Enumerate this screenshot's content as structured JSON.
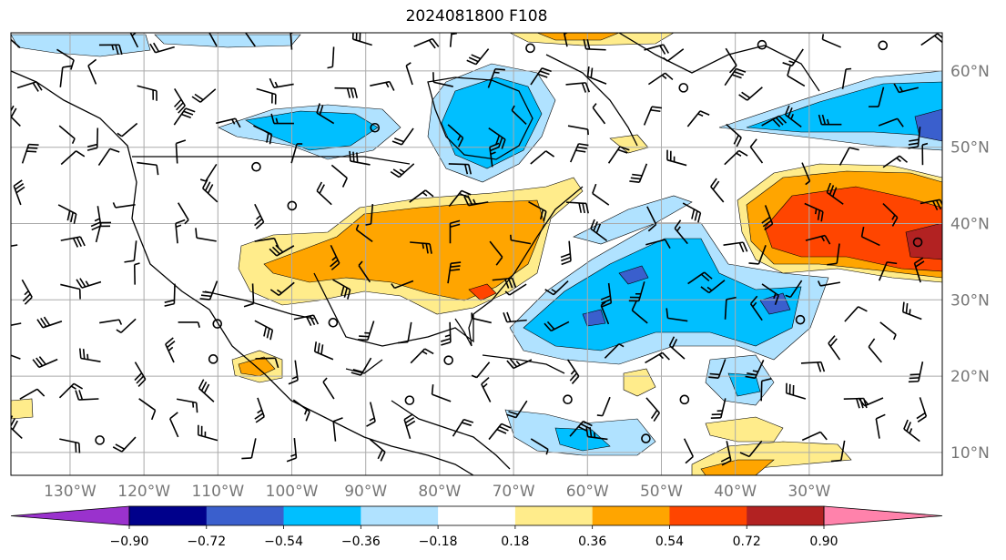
{
  "title": "2024081800 F108",
  "map": {
    "lon_range": [
      -138,
      -12
    ],
    "lat_range": [
      7,
      65
    ],
    "lon_ticks": [
      {
        "value": -130,
        "label": "130°W"
      },
      {
        "value": -120,
        "label": "120°W"
      },
      {
        "value": -110,
        "label": "110°W"
      },
      {
        "value": -100,
        "label": "100°W"
      },
      {
        "value": -90,
        "label": "90°W"
      },
      {
        "value": -80,
        "label": "80°W"
      },
      {
        "value": -70,
        "label": "70°W"
      },
      {
        "value": -60,
        "label": "60°W"
      },
      {
        "value": -50,
        "label": "50°W"
      },
      {
        "value": -40,
        "label": "40°W"
      },
      {
        "value": -30,
        "label": "30°W"
      }
    ],
    "lat_ticks": [
      {
        "value": 60,
        "label": "60°N"
      },
      {
        "value": 50,
        "label": "50°N"
      },
      {
        "value": 40,
        "label": "40°N"
      },
      {
        "value": 30,
        "label": "30°N"
      },
      {
        "value": 20,
        "label": "20°N"
      },
      {
        "value": 10,
        "label": "10°N"
      }
    ]
  },
  "colorbar": {
    "bins": [
      {
        "color": "#9a32cd",
        "extend": "min"
      },
      {
        "color": "#00008b"
      },
      {
        "color": "#3a5fcd"
      },
      {
        "color": "#00bfff"
      },
      {
        "color": "#b0e2ff"
      },
      {
        "color": "#ffffff"
      },
      {
        "color": "#ffec8b"
      },
      {
        "color": "#ffa500"
      },
      {
        "color": "#ff4500"
      },
      {
        "color": "#b22222"
      },
      {
        "color": "#ff82ab",
        "extend": "max"
      }
    ],
    "labels": [
      "−0.90",
      "−0.72",
      "−0.54",
      "−0.36",
      "−0.18",
      "0.18",
      "0.36",
      "0.54",
      "0.72",
      "0.90"
    ]
  },
  "field_colors": {
    "light_blue": "#b0e2ff",
    "blue": "#00bfff",
    "mid_blue": "#3a5fcd",
    "yellow": "#ffec8b",
    "orange": "#ffa500",
    "red": "#ff4500",
    "dark_red": "#b22222"
  }
}
